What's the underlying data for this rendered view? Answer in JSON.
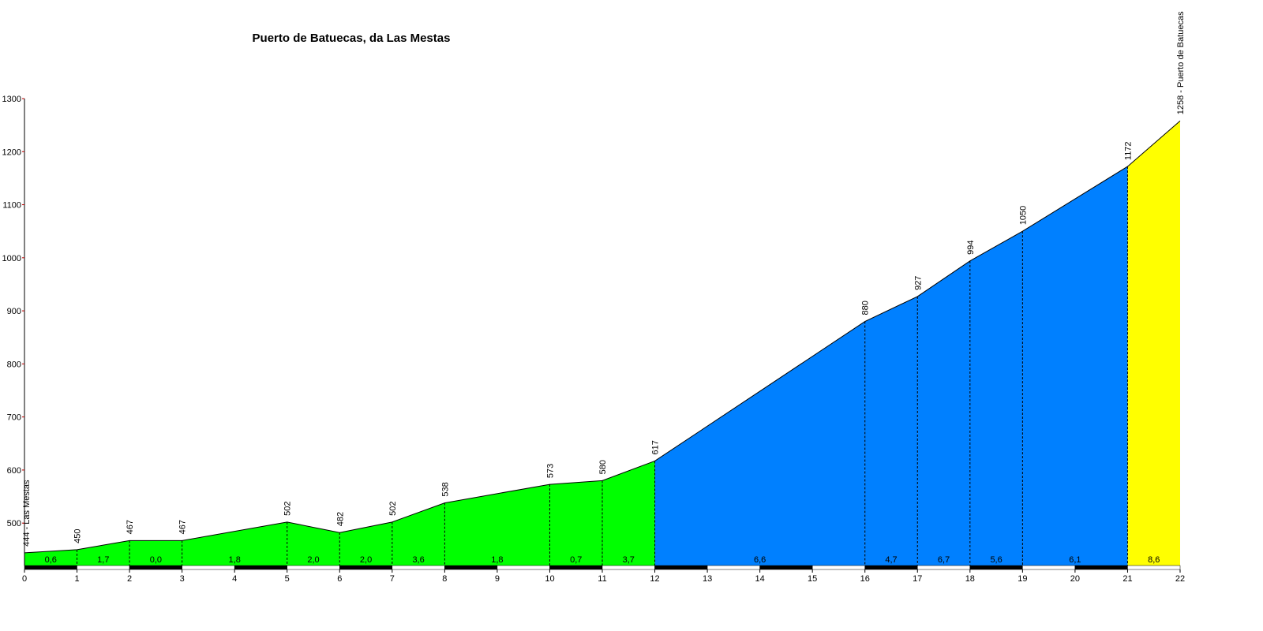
{
  "chart_data": {
    "type": "elevation-profile",
    "title": "Puerto de Batuecas, da Las Mestas",
    "x": [
      0,
      1,
      2,
      3,
      5,
      6,
      7,
      8,
      10,
      11,
      12,
      16,
      17,
      18,
      19,
      21,
      22
    ],
    "values": [
      444,
      450,
      467,
      467,
      502,
      482,
      502,
      538,
      573,
      580,
      617,
      880,
      927,
      994,
      1050,
      1172,
      1258
    ],
    "value_labels": [
      "444 - Las Mestas",
      "450",
      "467",
      "467",
      "502",
      "482",
      "502",
      "538",
      "573",
      "580",
      "617",
      "880",
      "927",
      "994",
      "1050",
      "1172",
      "1258 - Puerto de Batuecas"
    ],
    "segments": {
      "gradients": [
        0.6,
        1.7,
        0.0,
        1.8,
        2.0,
        2.0,
        3.6,
        1.8,
        0.7,
        3.7,
        6.6,
        4.7,
        6.7,
        5.6,
        6.1,
        8.6
      ],
      "gradient_labels": [
        "0,6",
        "1,7",
        "0,0",
        "1,8",
        "2,0",
        "2,0",
        "3,6",
        "1,8",
        "0,7",
        "3,7",
        "6,6",
        "4,7",
        "6,7",
        "5,6",
        "6,1",
        "8,6"
      ],
      "colors": [
        "#00ff00",
        "#00ff00",
        "#00ff00",
        "#00ff00",
        "#00ff00",
        "#00ff00",
        "#00ff00",
        "#00ff00",
        "#00ff00",
        "#00ff00",
        "#0080ff",
        "#0080ff",
        "#0080ff",
        "#0080ff",
        "#0080ff",
        "#ffff00"
      ]
    },
    "xlim": [
      0,
      22
    ],
    "xticks": [
      0,
      1,
      2,
      3,
      4,
      5,
      6,
      7,
      8,
      9,
      10,
      11,
      12,
      13,
      14,
      15,
      16,
      17,
      18,
      19,
      20,
      21,
      22
    ],
    "ylim": [
      420,
      1300
    ],
    "yticks": [
      500,
      600,
      700,
      800,
      900,
      1000,
      1100,
      1200,
      1300
    ]
  }
}
